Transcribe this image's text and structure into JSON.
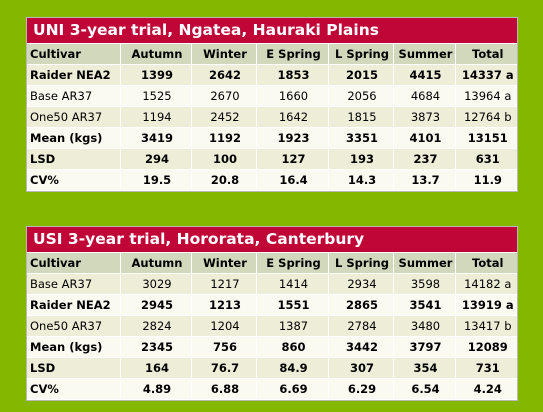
{
  "columns": [
    "Cultivar",
    "Autumn",
    "Winter",
    "E Spring",
    "L Spring",
    "Summer",
    "Total"
  ],
  "tables": [
    {
      "title": "UNI 3-year trial, Ngatea, Hauraki Plains",
      "rows": [
        [
          "Raider NEA2",
          "1399",
          "2642",
          "1853",
          "2015",
          "4415",
          "14337 a"
        ],
        [
          "Base AR37",
          "1525",
          "2670",
          "1660",
          "2056",
          "4684",
          "13964 a"
        ],
        [
          "One50 AR37",
          "1194",
          "2452",
          "1642",
          "1815",
          "3873",
          "12764 b"
        ],
        [
          "Mean (kgs)",
          "3419",
          "1192",
          "1923",
          "3351",
          "4101",
          "13151"
        ],
        [
          "LSD",
          "294",
          "100",
          "127",
          "193",
          "237",
          "631"
        ],
        [
          "CV%",
          "19.5",
          "20.8",
          "16.4",
          "14.3",
          "13.7",
          "11.9"
        ]
      ]
    },
    {
      "title": "USI 3-year trial, Hororata, Canterbury",
      "rows": [
        [
          "Base AR37",
          "3029",
          "1217",
          "1414",
          "2934",
          "3598",
          "14182 a"
        ],
        [
          "Raider NEA2",
          "2945",
          "1213",
          "1551",
          "2865",
          "3541",
          "13919 a"
        ],
        [
          "One50 AR37",
          "2824",
          "1204",
          "1387",
          "2784",
          "3480",
          "13417 b"
        ],
        [
          "Mean (kgs)",
          "2345",
          "756",
          "860",
          "3442",
          "3797",
          "12089"
        ],
        [
          "LSD",
          "164",
          "76.7",
          "84.9",
          "307",
          "354",
          "731"
        ],
        [
          "CV%",
          "4.89",
          "6.88",
          "6.69",
          "6.29",
          "6.54",
          "4.24"
        ]
      ]
    }
  ],
  "bold_rows": [
    [
      0,
      3,
      4,
      5
    ],
    [
      1,
      3,
      4,
      5
    ]
  ],
  "colors": {
    "background": "#84b800",
    "title_bar": "#c00636",
    "header_row": "#d1d8bb",
    "row_shade": "#eeeed8",
    "row_light": "#fafaf1"
  }
}
